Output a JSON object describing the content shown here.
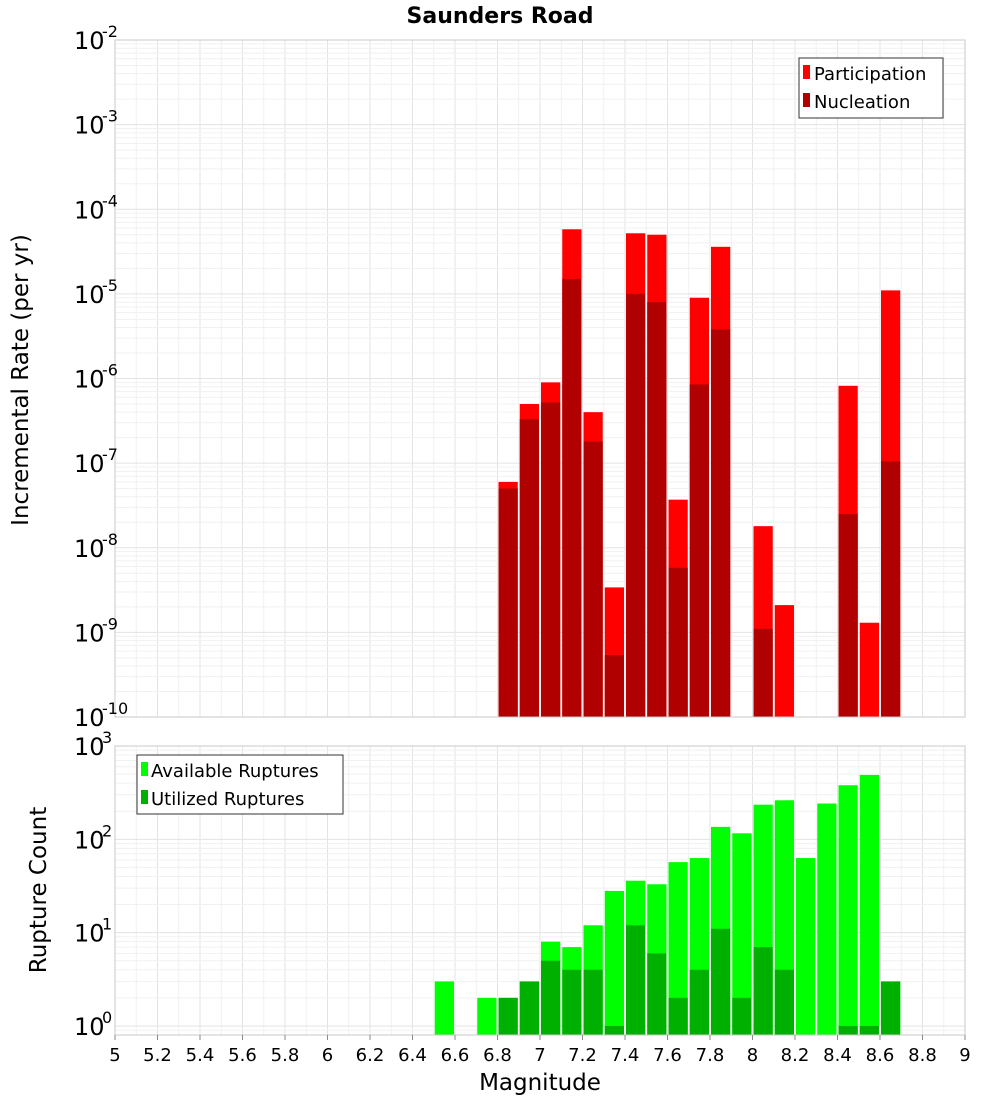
{
  "colors": {
    "participation": "#ff0000",
    "nucleation": "#b00000",
    "available": "#00ff00",
    "utilized": "#00b000",
    "grid_major": "#e3e3e3",
    "grid_minor": "#f1f1f1",
    "plot_border": "#c8c8c8"
  },
  "chart_data": [
    {
      "type": "bar",
      "title": "Saunders Road",
      "xlabel": "",
      "ylabel": "Incremental Rate (per yr)",
      "xlim": [
        5,
        9
      ],
      "ylim": [
        1e-10,
        0.01
      ],
      "yscale": "log",
      "ytick_bases": [
        "10",
        "10",
        "10",
        "10",
        "10",
        "10",
        "10",
        "10",
        "10"
      ],
      "ytick_exponents": [
        "-10",
        "-9",
        "-8",
        "-7",
        "-6",
        "-5",
        "-4",
        "-3",
        "-2"
      ],
      "grid": true,
      "legend_position": "top-right",
      "legend": [
        "Participation",
        "Nucleation"
      ],
      "bin_width": 0.1,
      "series": [
        {
          "name": "Participation",
          "x": [
            6.85,
            6.95,
            7.05,
            7.15,
            7.25,
            7.35,
            7.45,
            7.55,
            7.65,
            7.75,
            7.85,
            8.05,
            8.15,
            8.45,
            8.55,
            8.65
          ],
          "values": [
            6e-08,
            5e-07,
            9e-07,
            5.8e-05,
            4e-07,
            3.4e-09,
            5.2e-05,
            5e-05,
            3.7e-08,
            9e-06,
            3.6e-05,
            1.8e-08,
            2.1e-09,
            8.2e-07,
            1.3e-09,
            1.1e-05
          ]
        },
        {
          "name": "Nucleation",
          "x": [
            6.85,
            6.95,
            7.05,
            7.15,
            7.25,
            7.35,
            7.45,
            7.55,
            7.65,
            7.75,
            7.85,
            8.05,
            8.45,
            8.65
          ],
          "values": [
            5e-08,
            3.3e-07,
            5.2e-07,
            1.5e-05,
            1.8e-07,
            5.4e-10,
            1e-05,
            8e-06,
            5.8e-09,
            8.5e-07,
            3.8e-06,
            1.1e-09,
            2.5e-08,
            1.05e-07
          ]
        }
      ]
    },
    {
      "type": "bar",
      "title": "",
      "xlabel": "Magnitude",
      "ylabel": "Rupture Count",
      "xlim": [
        5,
        9
      ],
      "ylim": [
        0.8,
        1000
      ],
      "yscale": "log",
      "ytick_bases": [
        "10",
        "10",
        "10",
        "10"
      ],
      "ytick_exponents": [
        "0",
        "1",
        "2",
        "3"
      ],
      "xticks": [
        "5",
        "5.2",
        "5.4",
        "5.6",
        "5.8",
        "6",
        "6.2",
        "6.4",
        "6.6",
        "6.8",
        "7",
        "7.2",
        "7.4",
        "7.6",
        "7.8",
        "8",
        "8.2",
        "8.4",
        "8.6",
        "8.8",
        "9"
      ],
      "grid": true,
      "legend_position": "top-left",
      "legend": [
        "Available Ruptures",
        "Utilized Ruptures"
      ],
      "bin_width": 0.1,
      "series": [
        {
          "name": "Available Ruptures",
          "x": [
            6.55,
            6.75,
            6.85,
            6.95,
            7.05,
            7.15,
            7.25,
            7.35,
            7.45,
            7.55,
            7.65,
            7.75,
            7.85,
            7.95,
            8.05,
            8.15,
            8.25,
            8.35,
            8.45,
            8.55,
            8.65
          ],
          "values": [
            3,
            2,
            2,
            3,
            8,
            7,
            12,
            28,
            36,
            33,
            57,
            63,
            136,
            116,
            235,
            262,
            63,
            242,
            380,
            490,
            3
          ]
        },
        {
          "name": "Utilized Ruptures",
          "x": [
            6.85,
            6.95,
            7.05,
            7.15,
            7.25,
            7.35,
            7.45,
            7.55,
            7.65,
            7.75,
            7.85,
            7.95,
            8.05,
            8.15,
            8.45,
            8.55,
            8.65
          ],
          "values": [
            2,
            3,
            5,
            4,
            4,
            1,
            12,
            6,
            2,
            4,
            11,
            2,
            7,
            4,
            1,
            1,
            3
          ]
        }
      ]
    }
  ]
}
